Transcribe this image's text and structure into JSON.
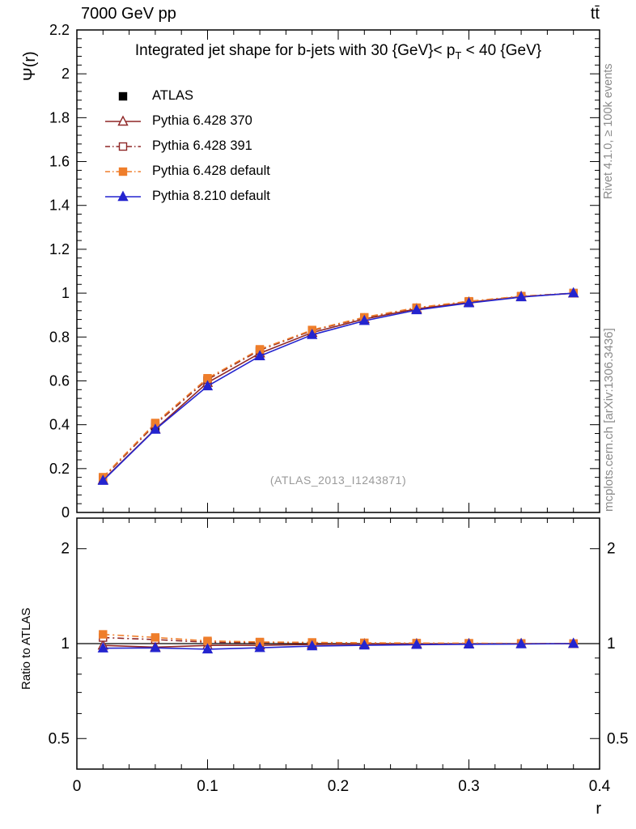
{
  "header": {
    "left": "7000 GeV pp",
    "right": "tt̄"
  },
  "titles": {
    "plot_title_pre": "Integrated jet shape for b-jets with 30 {GeV}< p",
    "plot_title_sub": "T",
    "plot_title_post": " < 40 {GeV}",
    "y_label_top": "Ψ(r)",
    "y_label_bottom": "Ratio to ATLAS",
    "x_label": "r",
    "watermark": "(ATLAS_2013_I1243871)"
  },
  "side_notes": {
    "top_right": "Rivet 4.1.0, ≥ 100k events",
    "bottom_right": "mcplots.cern.ch [arXiv:1306.3436]"
  },
  "chart_data": {
    "type": "line",
    "title": "Integrated jet shape for b-jets with 30 GeV < pT < 40 GeV",
    "xlabel": "r",
    "ylabel_top": "Ψ(r)",
    "ylabel_bottom": "Ratio to ATLAS",
    "x": [
      0.02,
      0.06,
      0.1,
      0.14,
      0.18,
      0.22,
      0.26,
      0.3,
      0.34,
      0.38
    ],
    "x_axis": {
      "range": [
        0,
        0.4
      ],
      "major_ticks": [
        0,
        0.1,
        0.2,
        0.3,
        0.4
      ],
      "minor_step": 0.02
    },
    "top_panel": {
      "range": [
        0,
        2.2
      ],
      "major_ticks": [
        0,
        0.2,
        0.4,
        0.6,
        0.8,
        1.0,
        1.2,
        1.4,
        1.6,
        1.8,
        2.0,
        2.2
      ],
      "minor_step": 0.04
    },
    "bottom_panel": {
      "scale": "log",
      "range": [
        0.4,
        2.5
      ],
      "major_ticks": [
        0.5,
        1,
        2
      ],
      "minor_ticks": [
        0.4,
        0.6,
        0.7,
        0.8,
        0.9
      ]
    },
    "ratio_reference": 1.0,
    "series": [
      {
        "name": "ATLAS",
        "color": "#000000",
        "marker": "square",
        "fill": true,
        "line": "none",
        "values": [
          0.15,
          0.39,
          0.6,
          0.735,
          0.825,
          0.885,
          0.93,
          0.96,
          0.985,
          1.0
        ]
      },
      {
        "name": "Pythia 6.428 370",
        "color": "#8f2727",
        "marker": "triangle",
        "fill": false,
        "line": "solid",
        "values": [
          0.148,
          0.38,
          0.592,
          0.726,
          0.82,
          0.882,
          0.928,
          0.958,
          0.984,
          0.999
        ],
        "ratio": [
          0.987,
          0.974,
          0.987,
          0.988,
          0.994,
          0.997,
          0.998,
          0.998,
          0.999,
          0.999
        ]
      },
      {
        "name": "Pythia 6.428 391",
        "color": "#8f2727",
        "marker": "square",
        "fill": false,
        "line": "dashdot",
        "values": [
          0.157,
          0.402,
          0.606,
          0.74,
          0.829,
          0.888,
          0.932,
          0.961,
          0.986,
          1.0
        ],
        "ratio": [
          1.045,
          1.03,
          1.01,
          1.007,
          1.005,
          1.003,
          1.002,
          1.001,
          1.001,
          1.0
        ]
      },
      {
        "name": "Pythia 6.428 default",
        "color": "#ef7e2b",
        "marker": "square",
        "fill": true,
        "line": "dashdot",
        "values": [
          0.161,
          0.408,
          0.612,
          0.744,
          0.832,
          0.89,
          0.934,
          0.963,
          0.986,
          1.0
        ],
        "ratio": [
          1.07,
          1.046,
          1.02,
          1.012,
          1.009,
          1.006,
          1.004,
          1.003,
          1.001,
          1.0
        ]
      },
      {
        "name": "Pythia 8.210 default",
        "color": "#2424cf",
        "marker": "triangle",
        "fill": true,
        "line": "solid",
        "values": [
          0.145,
          0.378,
          0.576,
          0.713,
          0.81,
          0.874,
          0.923,
          0.955,
          0.982,
          1.0
        ],
        "ratio": [
          0.967,
          0.969,
          0.96,
          0.97,
          0.982,
          0.988,
          0.992,
          0.995,
          0.997,
          1.0
        ]
      }
    ]
  }
}
